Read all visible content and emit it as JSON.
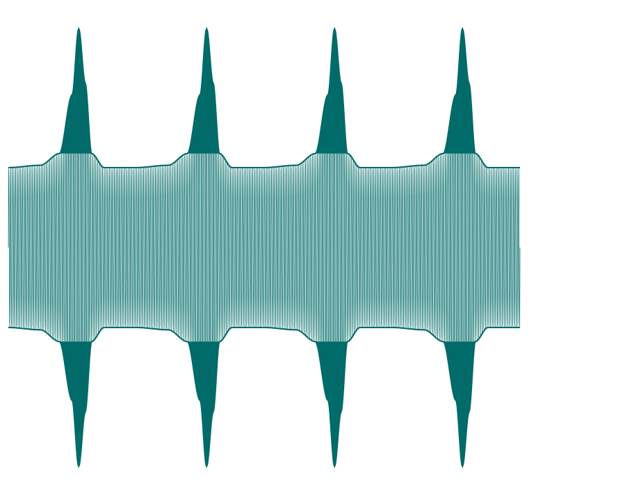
{
  "chart_data": {
    "type": "line",
    "title": "",
    "xlabel": "",
    "ylabel": "",
    "grid": false,
    "legend": "none",
    "axes_visible": false,
    "xlim": [
      0,
      4
    ],
    "ylim": [
      -1.0,
      1.0
    ],
    "color": "#006b68",
    "series": [
      {
        "description_free_signal": true,
        "carrier_cycles": 300,
        "base_envelope": 0.34,
        "burst_peak_envelope": 0.93,
        "plateau_envelope": 0.4,
        "burst_centers": [
          0.55,
          1.55,
          2.55,
          3.55
        ],
        "x": [
          0,
          0.25,
          0.4,
          0.5,
          0.55,
          0.6,
          0.65,
          0.75,
          1.0,
          1.25,
          1.4,
          1.5,
          1.55,
          1.6,
          1.65,
          1.75,
          2.0,
          2.25,
          2.4,
          2.5,
          2.55,
          2.6,
          2.65,
          2.75,
          3.0,
          3.25,
          3.4,
          3.5,
          3.55,
          3.6,
          3.65,
          3.75,
          4.0
        ],
        "upper_envelope": [
          0.34,
          0.35,
          0.4,
          0.65,
          0.93,
          0.7,
          0.4,
          0.34,
          0.34,
          0.35,
          0.4,
          0.65,
          0.93,
          0.7,
          0.4,
          0.34,
          0.34,
          0.35,
          0.4,
          0.65,
          0.93,
          0.7,
          0.4,
          0.34,
          0.34,
          0.35,
          0.4,
          0.65,
          0.93,
          0.7,
          0.4,
          0.34,
          0.34
        ]
      }
    ]
  }
}
